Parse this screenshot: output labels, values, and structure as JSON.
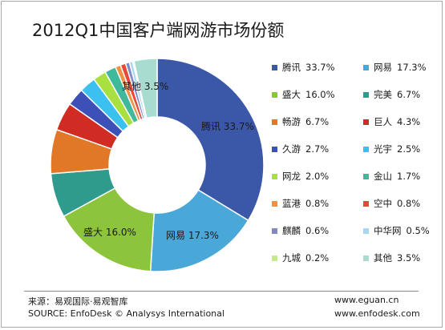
{
  "chart_data": {
    "type": "pie",
    "title": "2012Q1中国客户端网游市场份额",
    "legend_position": "right",
    "slices": [
      {
        "name": "腾讯",
        "value": 33.7,
        "label": "33.7%",
        "color": "#3b58a8"
      },
      {
        "name": "网易",
        "value": 17.3,
        "label": "17.3%",
        "color": "#4aa8d8"
      },
      {
        "name": "盛大",
        "value": 16.0,
        "label": "16.0%",
        "color": "#8cc43c"
      },
      {
        "name": "完美",
        "value": 6.7,
        "label": "6.7%",
        "color": "#2e9b8c"
      },
      {
        "name": "畅游",
        "value": 6.7,
        "label": "6.7%",
        "color": "#e07828"
      },
      {
        "name": "巨人",
        "value": 4.3,
        "label": "4.3%",
        "color": "#d02c24"
      },
      {
        "name": "久游",
        "value": 2.7,
        "label": "2.7%",
        "color": "#3c50b8"
      },
      {
        "name": "光宇",
        "value": 2.5,
        "label": "2.5%",
        "color": "#3cc0f0"
      },
      {
        "name": "网龙",
        "value": 2.0,
        "label": "2.0%",
        "color": "#a8e040"
      },
      {
        "name": "金山",
        "value": 1.7,
        "label": "1.7%",
        "color": "#40b89c"
      },
      {
        "name": "蓝港",
        "value": 0.8,
        "label": "0.8%",
        "color": "#f09040"
      },
      {
        "name": "空中",
        "value": 0.8,
        "label": "0.8%",
        "color": "#e84838"
      },
      {
        "name": "麒麟",
        "value": 0.6,
        "label": "0.6%",
        "color": "#8088c8"
      },
      {
        "name": "中华网",
        "value": 0.5,
        "label": "0.5%",
        "color": "#a8d8f0"
      },
      {
        "name": "九城",
        "value": 0.2,
        "label": "0.2%",
        "color": "#c8e890"
      },
      {
        "name": "其他",
        "value": 3.5,
        "label": "3.5%",
        "color": "#a8dcd0"
      }
    ],
    "slice_labels_shown": [
      "腾讯",
      "网易",
      "盛大",
      "其他"
    ]
  },
  "footer": {
    "source_cn": "来源：易观国际·易观智库",
    "source_en": "SOURCE: EnfoDesk © Analysys International",
    "site_1": "www.eguan.cn",
    "site_2": "www.enfodesk.com"
  }
}
